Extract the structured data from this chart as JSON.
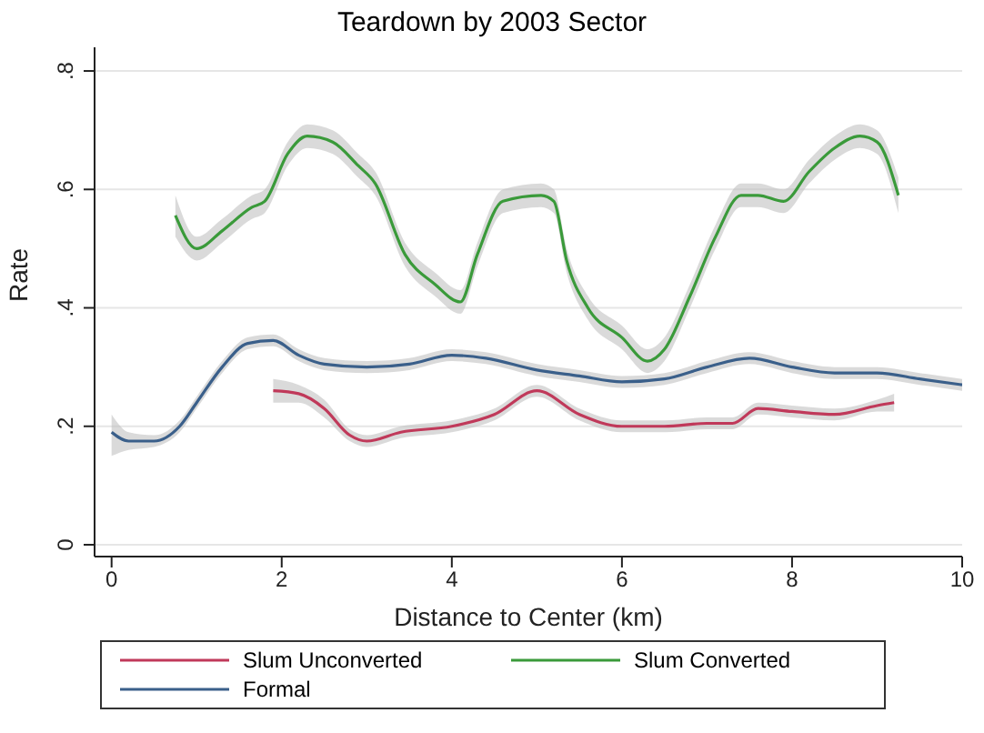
{
  "chart_data": {
    "type": "line",
    "title": "Teardown by 2003 Sector",
    "xlabel": "Distance to Center (km)",
    "ylabel": "Rate",
    "xlim": [
      -0.2,
      10
    ],
    "xticks": [
      0,
      2,
      4,
      6,
      8,
      10
    ],
    "ylim": [
      -0.02,
      0.84
    ],
    "yticks": [
      {
        "value": 0,
        "label": "0"
      },
      {
        "value": 0.2,
        "label": ".2"
      },
      {
        "value": 0.4,
        "label": ".4"
      },
      {
        "value": 0.6,
        "label": ".6"
      },
      {
        "value": 0.8,
        "label": ".8"
      }
    ],
    "grid": "y",
    "legend": "bottom",
    "marker": "none",
    "line_style": "solid",
    "series": [
      {
        "name": "Slum Unconverted",
        "color": "#c0395a",
        "x": [
          1.9,
          2.2,
          2.5,
          2.8,
          3.0,
          3.4,
          4.0,
          4.5,
          5.0,
          5.5,
          6.0,
          6.5,
          7.0,
          7.3,
          7.6,
          8.0,
          8.5,
          9.0,
          9.2
        ],
        "values": [
          0.26,
          0.255,
          0.23,
          0.185,
          0.175,
          0.19,
          0.2,
          0.22,
          0.26,
          0.22,
          0.2,
          0.2,
          0.205,
          0.205,
          0.23,
          0.225,
          0.22,
          0.235,
          0.24
        ],
        "lower": [
          0.24,
          0.24,
          0.215,
          0.175,
          0.165,
          0.18,
          0.19,
          0.21,
          0.25,
          0.21,
          0.19,
          0.19,
          0.195,
          0.195,
          0.22,
          0.215,
          0.21,
          0.225,
          0.225
        ],
        "upper": [
          0.28,
          0.27,
          0.245,
          0.195,
          0.185,
          0.2,
          0.21,
          0.23,
          0.27,
          0.23,
          0.21,
          0.21,
          0.215,
          0.215,
          0.24,
          0.235,
          0.23,
          0.245,
          0.255
        ]
      },
      {
        "name": "Slum Converted",
        "color": "#3a9a3a",
        "x": [
          0.75,
          1.0,
          1.3,
          1.65,
          1.8,
          2.07,
          2.3,
          2.6,
          2.9,
          3.1,
          3.45,
          3.8,
          4.1,
          4.3,
          4.6,
          5.05,
          5.2,
          5.35,
          5.6,
          6.0,
          6.3,
          6.5,
          6.8,
          7.1,
          7.4,
          7.6,
          7.9,
          8.2,
          8.5,
          8.8,
          9.0,
          9.25
        ],
        "values": [
          0.556,
          0.5,
          0.53,
          0.57,
          0.58,
          0.66,
          0.69,
          0.68,
          0.64,
          0.61,
          0.49,
          0.44,
          0.41,
          0.49,
          0.58,
          0.59,
          0.58,
          0.48,
          0.4,
          0.35,
          0.31,
          0.33,
          0.42,
          0.52,
          0.59,
          0.59,
          0.58,
          0.63,
          0.67,
          0.69,
          0.68,
          0.59
        ],
        "lower": [
          0.52,
          0.48,
          0.51,
          0.55,
          0.56,
          0.64,
          0.67,
          0.66,
          0.62,
          0.59,
          0.47,
          0.42,
          0.39,
          0.47,
          0.56,
          0.57,
          0.56,
          0.46,
          0.38,
          0.33,
          0.29,
          0.31,
          0.4,
          0.5,
          0.57,
          0.57,
          0.56,
          0.61,
          0.65,
          0.67,
          0.66,
          0.56
        ],
        "upper": [
          0.59,
          0.52,
          0.55,
          0.59,
          0.6,
          0.68,
          0.71,
          0.7,
          0.66,
          0.63,
          0.51,
          0.46,
          0.43,
          0.51,
          0.6,
          0.61,
          0.6,
          0.5,
          0.42,
          0.37,
          0.33,
          0.35,
          0.44,
          0.54,
          0.61,
          0.61,
          0.6,
          0.65,
          0.69,
          0.71,
          0.7,
          0.62
        ]
      },
      {
        "name": "Formal",
        "color": "#3a5f8a",
        "x": [
          0,
          0.2,
          0.5,
          0.8,
          1.0,
          1.3,
          1.6,
          1.9,
          2.2,
          2.5,
          3.0,
          3.5,
          4.0,
          4.4,
          5.0,
          5.5,
          6.0,
          6.5,
          7.0,
          7.5,
          8.0,
          8.5,
          9.0,
          9.5,
          10
        ],
        "values": [
          0.19,
          0.175,
          0.175,
          0.2,
          0.24,
          0.3,
          0.34,
          0.345,
          0.32,
          0.305,
          0.3,
          0.305,
          0.32,
          0.315,
          0.295,
          0.285,
          0.275,
          0.28,
          0.3,
          0.315,
          0.3,
          0.29,
          0.29,
          0.28,
          0.27
        ],
        "lower": [
          0.15,
          0.16,
          0.165,
          0.19,
          0.23,
          0.29,
          0.33,
          0.335,
          0.31,
          0.295,
          0.29,
          0.295,
          0.31,
          0.305,
          0.285,
          0.275,
          0.265,
          0.27,
          0.29,
          0.305,
          0.29,
          0.28,
          0.28,
          0.27,
          0.26
        ],
        "upper": [
          0.22,
          0.19,
          0.185,
          0.21,
          0.25,
          0.31,
          0.35,
          0.355,
          0.33,
          0.315,
          0.31,
          0.315,
          0.33,
          0.325,
          0.305,
          0.295,
          0.285,
          0.29,
          0.31,
          0.325,
          0.31,
          0.3,
          0.3,
          0.29,
          0.28
        ]
      }
    ]
  }
}
